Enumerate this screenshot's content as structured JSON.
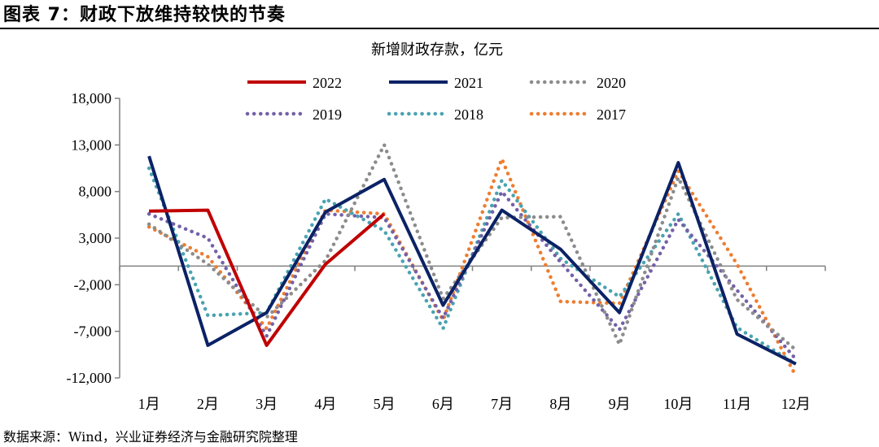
{
  "header": {
    "figure_title": "图表 7：财政下放维持较快的节奏"
  },
  "footer": {
    "source": "数据来源：Wind，兴业证券经济与金融研究院整理"
  },
  "chart_data": {
    "type": "line",
    "title": "新增财政存款，亿元",
    "xlabel": "",
    "ylabel": "",
    "categories": [
      "1月",
      "2月",
      "3月",
      "4月",
      "5月",
      "6月",
      "7月",
      "8月",
      "9月",
      "10月",
      "11月",
      "12月"
    ],
    "ylim": [
      -12000,
      18000
    ],
    "yticks": [
      -12000,
      -7000,
      -2000,
      3000,
      8000,
      13000,
      18000
    ],
    "ytick_labels": [
      "-12,000",
      "-7,000",
      "-2,000",
      "3,000",
      "8,000",
      "13,000",
      "18,000"
    ],
    "grid": false,
    "legend_position": "top",
    "series": [
      {
        "name": "2022",
        "color": "#c00000",
        "style": "solid",
        "values": [
          5900,
          6000,
          -8500,
          200,
          5600,
          null,
          null,
          null,
          null,
          null,
          null,
          null
        ]
      },
      {
        "name": "2021",
        "color": "#0b2265",
        "style": "solid",
        "values": [
          11800,
          -8500,
          -5000,
          5800,
          9300,
          -4200,
          6000,
          1800,
          -5000,
          11100,
          -7300,
          -10500
        ]
      },
      {
        "name": "2020",
        "color": "#8c8c8c",
        "style": "dotted",
        "values": [
          4500,
          200,
          -5500,
          600,
          13000,
          -3500,
          5200,
          5300,
          -8400,
          9500,
          -3600,
          -9000
        ]
      },
      {
        "name": "2019",
        "color": "#7461a8",
        "style": "dotted",
        "values": [
          5600,
          3000,
          -7500,
          5600,
          5200,
          -5600,
          8000,
          400,
          -6800,
          5000,
          -2600,
          -10000
        ]
      },
      {
        "name": "2018",
        "color": "#4aa3b0",
        "style": "dotted",
        "values": [
          10500,
          -5300,
          -5000,
          7200,
          3800,
          -6700,
          9200,
          800,
          -3300,
          5600,
          -6600,
          -10500
        ]
      },
      {
        "name": "2017",
        "color": "#ed7d31",
        "style": "dotted",
        "values": [
          4200,
          1000,
          -6700,
          6000,
          5600,
          -5800,
          11500,
          -3800,
          -4000,
          10200,
          200,
          -11800
        ]
      }
    ]
  }
}
